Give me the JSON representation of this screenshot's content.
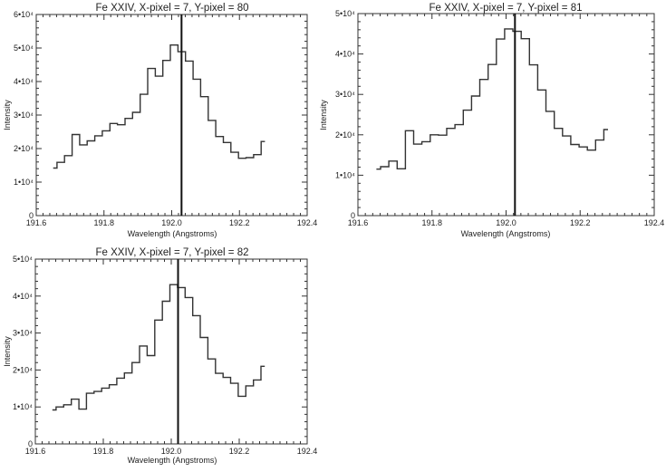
{
  "chart_data": [
    {
      "type": "line",
      "style": "step-histogram",
      "title": "Fe XXIV, X-pixel = 7, Y-pixel = 80",
      "xlabel": "Wavelength (Angstroms)",
      "ylabel": "Intensity",
      "xlim": [
        191.6,
        192.4
      ],
      "ylim": [
        0,
        60000
      ],
      "xticks": [
        "191.6",
        "191.8",
        "192.0",
        "192.2",
        "192.4"
      ],
      "yticks": [
        "0",
        "1•10⁴",
        "2•10⁴",
        "3•10⁴",
        "4•10⁴",
        "5•10⁴",
        "6•10⁴"
      ],
      "x_start": 191.65,
      "x_step": 0.02233,
      "values": [
        14200,
        15900,
        17900,
        24200,
        21100,
        22300,
        23800,
        25300,
        27500,
        27100,
        29000,
        30800,
        36200,
        43900,
        41600,
        46300,
        50900,
        48900,
        46100,
        40700,
        35500,
        28400,
        23600,
        21800,
        18900,
        17100,
        17300,
        18200,
        22100
      ],
      "vline": 192.029,
      "grid": false
    },
    {
      "type": "line",
      "style": "step-histogram",
      "title": "Fe XXIV, X-pixel = 7, Y-pixel = 81",
      "xlabel": "Wavelength (Angstroms)",
      "ylabel": "Intensity",
      "xlim": [
        191.6,
        192.4
      ],
      "ylim": [
        0,
        50000
      ],
      "xticks": [
        "191.6",
        "191.8",
        "192.0",
        "192.2",
        "192.4"
      ],
      "yticks": [
        "0",
        "1•10⁴",
        "2•10⁴",
        "3•10⁴",
        "4•10⁴",
        "5•10⁴"
      ],
      "x_start": 191.65,
      "x_step": 0.02233,
      "values": [
        11500,
        12100,
        13500,
        11600,
        21000,
        17700,
        18300,
        20000,
        19900,
        21600,
        22500,
        26100,
        29600,
        33700,
        37400,
        43700,
        46200,
        45600,
        43800,
        37300,
        31100,
        25800,
        21600,
        19700,
        17600,
        17000,
        16200,
        18700,
        21300
      ],
      "vline": 192.024,
      "grid": false
    },
    {
      "type": "line",
      "style": "step-histogram",
      "title": "Fe XXIV, X-pixel = 7, Y-pixel = 82",
      "xlabel": "Wavelength (Angstroms)",
      "ylabel": "Intensity",
      "xlim": [
        191.6,
        192.4
      ],
      "ylim": [
        0,
        50000
      ],
      "xticks": [
        "191.6",
        "191.8",
        "192.0",
        "192.2",
        "192.4"
      ],
      "yticks": [
        "0",
        "1•10⁴",
        "2•10⁴",
        "3•10⁴",
        "4•10⁴",
        "5•10⁴"
      ],
      "x_start": 191.65,
      "x_step": 0.02233,
      "values": [
        9200,
        10000,
        10600,
        12100,
        9400,
        13700,
        14200,
        15100,
        16000,
        17800,
        19200,
        22000,
        26500,
        23900,
        33500,
        38600,
        43100,
        42300,
        39600,
        34700,
        28800,
        23000,
        19100,
        18000,
        16400,
        12900,
        15700,
        17300,
        21000
      ],
      "vline": 192.02,
      "grid": false
    }
  ]
}
